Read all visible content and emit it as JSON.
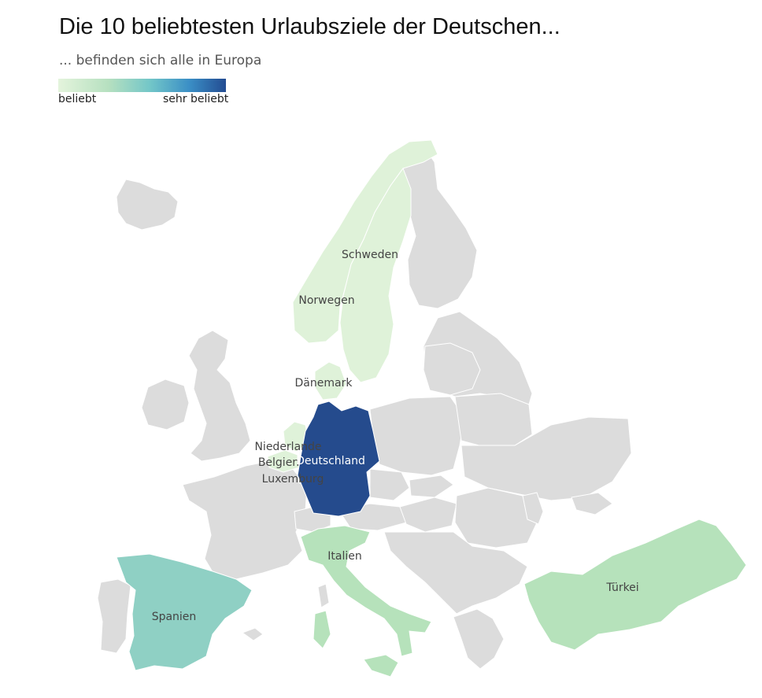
{
  "title": "Die 10 beliebtesten Urlaubsziele der Deutschen...",
  "subtitle": "... befinden sich alle in Europa",
  "legend": {
    "low": "beliebt",
    "high": "sehr beliebt"
  },
  "colors": {
    "not_ranked": "#dcdcdc",
    "level_1": "#dff2d9",
    "level_2": "#b6e2bb",
    "level_3": "#8fd0c4",
    "level_top": "#254b8d"
  },
  "countries": [
    {
      "name": "Schweden",
      "level": "level_1"
    },
    {
      "name": "Norwegen",
      "level": "level_1"
    },
    {
      "name": "Dänemark",
      "level": "level_1"
    },
    {
      "name": "Niederlande",
      "level": "level_1"
    },
    {
      "name": "Belgien",
      "level": "level_1"
    },
    {
      "name": "Luxemburg",
      "level": "level_1"
    },
    {
      "name": "Deutschland",
      "level": "level_top"
    },
    {
      "name": "Italien",
      "level": "level_2"
    },
    {
      "name": "Spanien",
      "level": "level_3"
    },
    {
      "name": "Türkei",
      "level": "level_2"
    }
  ]
}
